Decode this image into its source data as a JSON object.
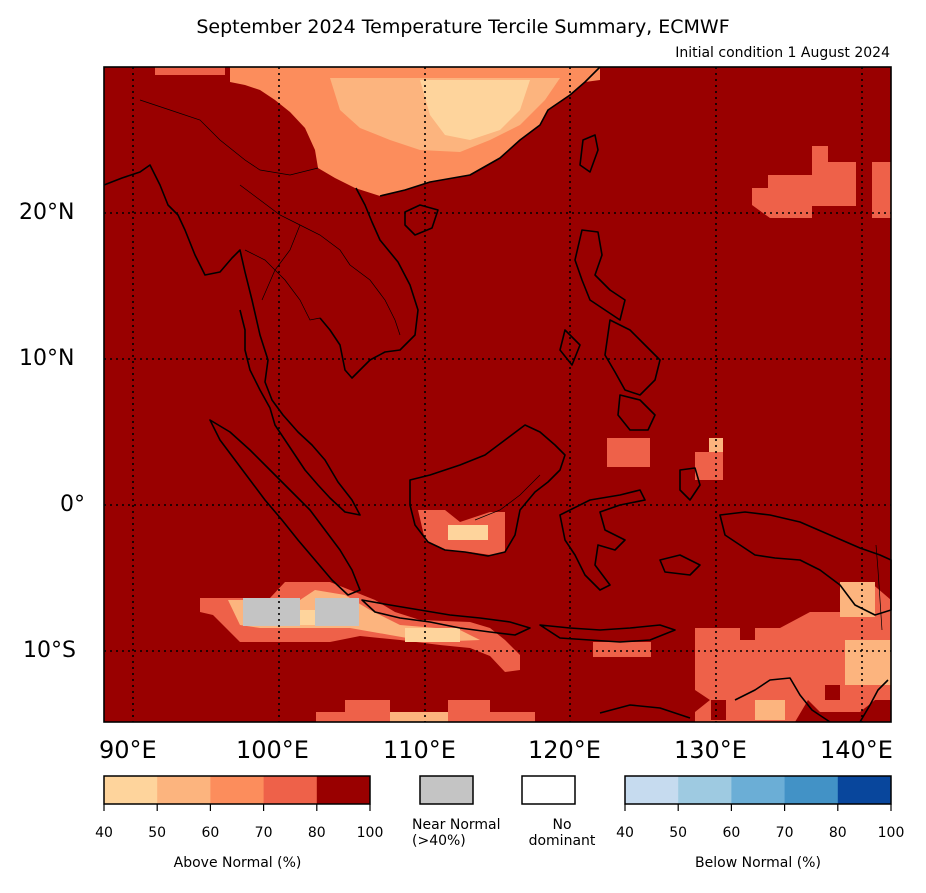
{
  "title": "September 2024 Temperature Tercile Summary, ECMWF",
  "subtitle": "Initial condition 1 August 2024",
  "map": {
    "lon_range": [
      88,
      142
    ],
    "lat_range": [
      -15,
      30
    ],
    "lat_labels": [
      "20°N",
      "10°N",
      "0°",
      "10°S"
    ],
    "lon_labels": [
      "90°E",
      "100°E",
      "110°E",
      "120°E",
      "130°E",
      "140°E"
    ],
    "background_category": "above-normal-80-100"
  },
  "legend": {
    "above": {
      "name": "Above Normal (%)",
      "ticks": [
        "40",
        "50",
        "60",
        "70",
        "80",
        "100"
      ],
      "colors": [
        "#fed49c",
        "#fcb47e",
        "#fc8d5c",
        "#ee6149",
        "#990000"
      ]
    },
    "near": {
      "name": "Near Normal\n(>40%)",
      "color": "#c4c4c4"
    },
    "none": {
      "name": "No\ndominant",
      "color": "#ffffff"
    },
    "below": {
      "name": "Below Normal (%)",
      "ticks": [
        "40",
        "50",
        "60",
        "70",
        "80",
        "100"
      ],
      "colors": [
        "#c6dbef",
        "#9ecae1",
        "#6baed6",
        "#4292c6",
        "#08469c"
      ]
    }
  }
}
